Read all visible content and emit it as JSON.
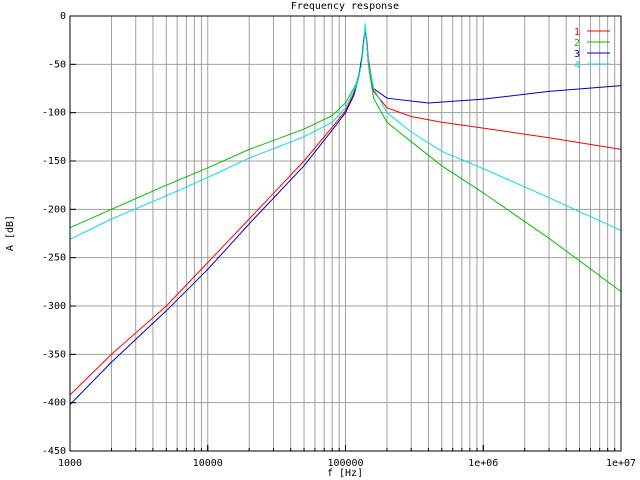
{
  "chart_data": {
    "type": "line",
    "title": "Frequency response",
    "xlabel": "f [Hz]",
    "ylabel": "A [dB]",
    "x_scale": "log",
    "xlim": [
      1000,
      10000000
    ],
    "ylim": [
      -450,
      0
    ],
    "grid": true,
    "legend_position": "top-right",
    "x_ticks": [
      {
        "value": 1000,
        "label": "1000"
      },
      {
        "value": 10000,
        "label": "10000"
      },
      {
        "value": 100000,
        "label": "100000"
      },
      {
        "value": 1000000,
        "label": "1e+06"
      },
      {
        "value": 10000000,
        "label": "1e+07"
      }
    ],
    "y_ticks": [
      0,
      -50,
      -100,
      -150,
      -200,
      -250,
      -300,
      -350,
      -400,
      -450
    ],
    "series": [
      {
        "name": "1",
        "color": "#ff0000",
        "points": [
          [
            1000,
            -392
          ],
          [
            2000,
            -350
          ],
          [
            5000,
            -300
          ],
          [
            10000,
            -255
          ],
          [
            20000,
            -210
          ],
          [
            50000,
            -150
          ],
          [
            80000,
            -115
          ],
          [
            100000,
            -98
          ],
          [
            115000,
            -80
          ],
          [
            125000,
            -62
          ],
          [
            132000,
            -40
          ],
          [
            136000,
            -22
          ],
          [
            139000,
            -15
          ],
          [
            142000,
            -22
          ],
          [
            147000,
            -45
          ],
          [
            160000,
            -78
          ],
          [
            200000,
            -95
          ],
          [
            300000,
            -104
          ],
          [
            500000,
            -110
          ],
          [
            1000000,
            -116
          ],
          [
            3000000,
            -126
          ],
          [
            10000000,
            -138
          ]
        ]
      },
      {
        "name": "2",
        "color": "#00c000",
        "points": [
          [
            1000,
            -219
          ],
          [
            2000,
            -200
          ],
          [
            5000,
            -175
          ],
          [
            10000,
            -157
          ],
          [
            20000,
            -138
          ],
          [
            50000,
            -117
          ],
          [
            80000,
            -103
          ],
          [
            100000,
            -90
          ],
          [
            120000,
            -70
          ],
          [
            130000,
            -50
          ],
          [
            136000,
            -25
          ],
          [
            139000,
            -12
          ],
          [
            142000,
            -25
          ],
          [
            148000,
            -55
          ],
          [
            160000,
            -85
          ],
          [
            200000,
            -110
          ],
          [
            300000,
            -130
          ],
          [
            500000,
            -155
          ],
          [
            1000000,
            -183
          ],
          [
            3000000,
            -230
          ],
          [
            10000000,
            -285
          ]
        ]
      },
      {
        "name": "3",
        "color": "#0000c0",
        "points": [
          [
            1000,
            -402
          ],
          [
            2000,
            -358
          ],
          [
            5000,
            -305
          ],
          [
            10000,
            -262
          ],
          [
            20000,
            -215
          ],
          [
            50000,
            -155
          ],
          [
            80000,
            -118
          ],
          [
            100000,
            -100
          ],
          [
            115000,
            -82
          ],
          [
            125000,
            -63
          ],
          [
            132000,
            -42
          ],
          [
            136000,
            -25
          ],
          [
            139000,
            -15
          ],
          [
            142000,
            -25
          ],
          [
            147000,
            -50
          ],
          [
            160000,
            -75
          ],
          [
            200000,
            -85
          ],
          [
            400000,
            -90
          ],
          [
            1000000,
            -86
          ],
          [
            3000000,
            -78
          ],
          [
            10000000,
            -72
          ]
        ]
      },
      {
        "name": "4",
        "color": "#00e0e0",
        "points": [
          [
            1000,
            -231
          ],
          [
            2000,
            -210
          ],
          [
            5000,
            -186
          ],
          [
            10000,
            -167
          ],
          [
            20000,
            -147
          ],
          [
            50000,
            -125
          ],
          [
            80000,
            -110
          ],
          [
            100000,
            -95
          ],
          [
            120000,
            -72
          ],
          [
            130000,
            -52
          ],
          [
            136000,
            -27
          ],
          [
            139000,
            -8
          ],
          [
            142000,
            -27
          ],
          [
            148000,
            -52
          ],
          [
            160000,
            -75
          ],
          [
            200000,
            -100
          ],
          [
            300000,
            -120
          ],
          [
            500000,
            -140
          ],
          [
            1000000,
            -158
          ],
          [
            3000000,
            -188
          ],
          [
            10000000,
            -222
          ]
        ]
      }
    ]
  }
}
